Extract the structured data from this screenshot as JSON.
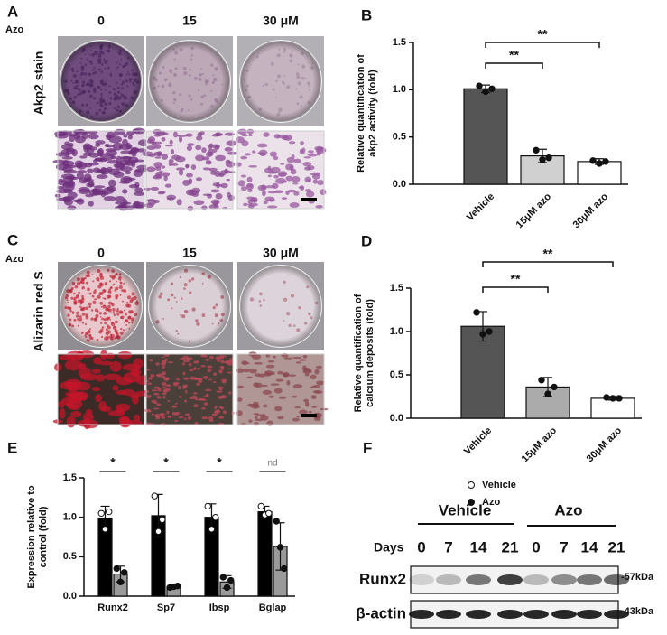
{
  "panels": {
    "A": {
      "label": "A",
      "treatment": "Azo",
      "doses": [
        "0",
        "15",
        "30 μM"
      ],
      "stain": "Akp2 stain"
    },
    "C": {
      "label": "C",
      "treatment": "Azo",
      "doses": [
        "0",
        "15",
        "30 μM"
      ],
      "stain": "Alizarin red S"
    },
    "F": {
      "label": "F",
      "groups": [
        "Vehicle",
        "Azo"
      ],
      "days_label": "Days",
      "days": [
        "0",
        "7",
        "14",
        "21",
        "0",
        "7",
        "14",
        "21"
      ],
      "rows": [
        {
          "protein": "Runx2",
          "size": "-57kDa"
        },
        {
          "protein": "β-actin",
          "size": "-43kDa"
        }
      ]
    }
  },
  "chart_data": [
    {
      "type": "bar",
      "panel": "B",
      "ylabel": [
        "Relative quantification of",
        "akp2 activity (fold)"
      ],
      "categories": [
        "Vehicle",
        "15μM azo",
        "30μM azo"
      ],
      "values": [
        1.01,
        0.3,
        0.24
      ],
      "errors": [
        0.04,
        0.07,
        0.03
      ],
      "points": [
        [
          1.04,
          0.98,
          1.01
        ],
        [
          0.36,
          0.26,
          0.28
        ],
        [
          0.25,
          0.22,
          0.24
        ]
      ],
      "marker": "filled",
      "colors": [
        "#555555",
        "#d0d0d0",
        "#ffffff"
      ],
      "ylim": [
        0,
        1.5
      ],
      "yticks": [
        {
          "value": 0,
          "label": "0.0"
        },
        0.5,
        {
          "value": 1,
          "label": "1.0"
        },
        {
          "value": 1.5,
          "label": "1.5"
        }
      ],
      "comparisons": [
        {
          "groups": [
            "Vehicle",
            "15μM azo"
          ],
          "label": "**"
        },
        {
          "groups": [
            "Vehicle",
            "30μM azo"
          ],
          "label": "**"
        }
      ]
    },
    {
      "type": "bar",
      "panel": "D",
      "ylabel": [
        "Relative quantification of",
        "calcium deposits (fold)"
      ],
      "categories": [
        "Vehicle",
        "15μM azo",
        "30μM azo"
      ],
      "values": [
        1.06,
        0.36,
        0.23
      ],
      "errors": [
        0.17,
        0.11,
        0.02
      ],
      "points": [
        [
          1.22,
          0.97,
          1.0
        ],
        [
          0.44,
          0.28,
          0.36
        ],
        [
          0.24,
          0.23,
          0.23
        ]
      ],
      "marker": "filled",
      "colors": [
        "#555555",
        "#ababab",
        "#ffffff"
      ],
      "ylim": [
        0,
        1.5
      ],
      "yticks": [
        {
          "value": 0,
          "label": "0.0"
        },
        0.5,
        {
          "value": 1,
          "label": "1.0"
        },
        {
          "value": 1.5,
          "label": "1.5"
        }
      ],
      "comparisons": [
        {
          "groups": [
            "Vehicle",
            "15μM azo"
          ],
          "label": "**"
        },
        {
          "groups": [
            "Vehicle",
            "30μM azo"
          ],
          "label": "**"
        }
      ]
    },
    {
      "type": "bar",
      "panel": "E",
      "ylabel": [
        "Expression relative to",
        "control (fold)"
      ],
      "categories": [
        "Runx2",
        "Sp7",
        "Ibsp",
        "Bglap"
      ],
      "series": [
        {
          "name": "Vehicle",
          "color": "#000000",
          "marker": "open",
          "values": [
            0.99,
            1.02,
            1.0,
            1.07
          ],
          "errors": [
            0.15,
            0.27,
            0.17,
            0.07
          ],
          "points": [
            [
              1.05,
              0.85,
              1.07
            ],
            [
              1.27,
              0.82,
              0.97
            ],
            [
              1.14,
              0.85,
              1.0
            ],
            [
              1.14,
              1.03,
              1.05
            ]
          ]
        },
        {
          "name": "Azo",
          "color": "#9a9a9a",
          "marker": "filled",
          "values": [
            0.28,
            0.12,
            0.18,
            0.63
          ],
          "errors": [
            0.1,
            0.02,
            0.08,
            0.3
          ],
          "points": [
            [
              0.35,
              0.18,
              0.3
            ],
            [
              0.11,
              0.12,
              0.13
            ],
            [
              0.24,
              0.11,
              0.2
            ],
            [
              0.95,
              0.62,
              0.35
            ]
          ]
        }
      ],
      "significance": [
        "*",
        "*",
        "*",
        "nd"
      ],
      "ylim": [
        0,
        1.5
      ],
      "yticks": [
        {
          "value": 0,
          "label": "0.0"
        },
        0.5,
        {
          "value": 1,
          "label": "1.0"
        },
        {
          "value": 1.5,
          "label": "1.5"
        }
      ]
    }
  ]
}
